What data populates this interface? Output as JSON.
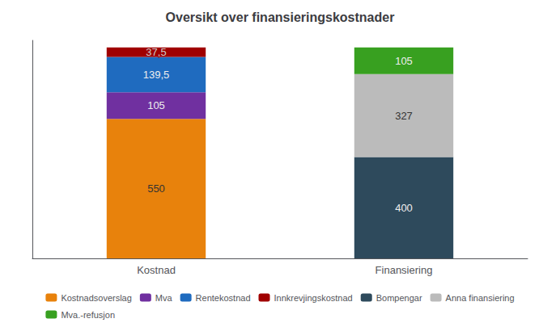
{
  "chart_data": {
    "type": "bar",
    "title": "Oversikt over finansieringskostnader",
    "categories": [
      "Kostnad",
      "Finansiering"
    ],
    "series": [
      {
        "name": "Kostnadsoverslag",
        "color": "#E8820C",
        "values": [
          550,
          null
        ]
      },
      {
        "name": "Mva",
        "color": "#7030A0",
        "values": [
          105,
          null
        ]
      },
      {
        "name": "Rentekostnad",
        "color": "#1F6BBF",
        "values": [
          139.5,
          null
        ],
        "value_labels": [
          "139,5",
          null
        ]
      },
      {
        "name": "Innkrevjingskostnad",
        "color": "#A00000",
        "values": [
          37.5,
          null
        ],
        "value_labels": [
          "37,5",
          null
        ]
      },
      {
        "name": "Bompengar",
        "color": "#2E4A5C",
        "values": [
          null,
          400
        ]
      },
      {
        "name": "Anna finansiering",
        "color": "#BBBBBB",
        "values": [
          null,
          327
        ]
      },
      {
        "name": "Mva.-refusjon",
        "color": "#38A020",
        "values": [
          null,
          105
        ]
      }
    ],
    "ylim": [
      0,
      860
    ],
    "stacked": true,
    "data_labels": true,
    "tick_labels": "x",
    "grid": false,
    "legend": "bottom"
  }
}
